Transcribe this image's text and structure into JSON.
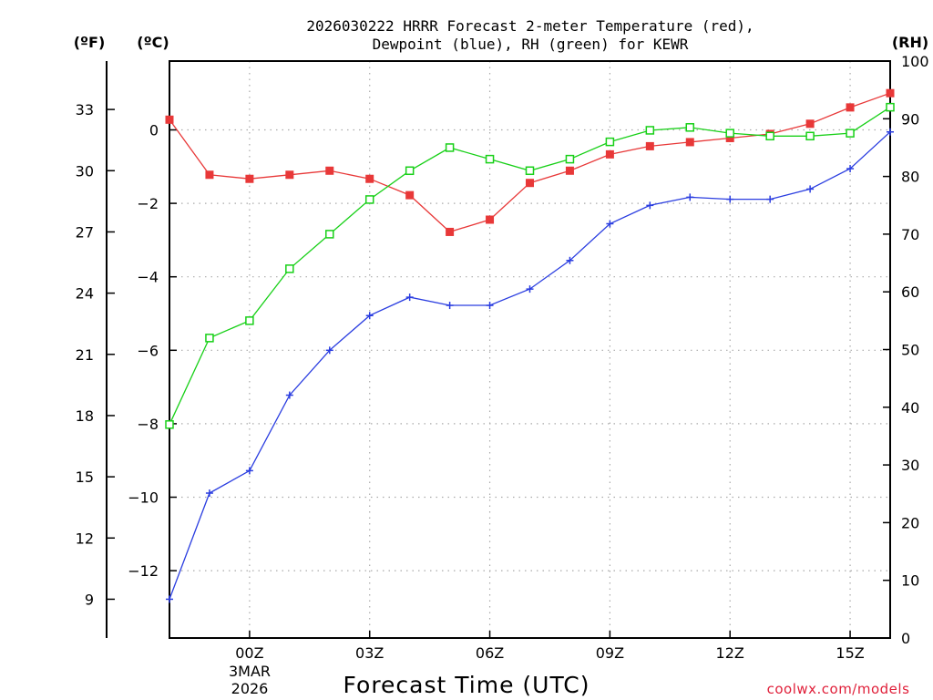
{
  "chart_data": {
    "type": "line",
    "title": [
      "2026030222 HRRR Forecast 2-meter Temperature (red),",
      "Dewpoint (blue), RH (green) for KEWR"
    ],
    "xlabel": "Forecast Time (UTC)",
    "credit": "coolwx.com/models",
    "unit_f": "(ºF)",
    "unit_c": "(ºC)",
    "unit_rh": "(RH)",
    "x": [
      22,
      23,
      24,
      25,
      26,
      27,
      28,
      29,
      30,
      31,
      32,
      33,
      34,
      35,
      36,
      37,
      38,
      39,
      40
    ],
    "x_ticks": [
      {
        "x": 24,
        "label": "00Z"
      },
      {
        "x": 27,
        "label": "03Z"
      },
      {
        "x": 30,
        "label": "06Z"
      },
      {
        "x": 33,
        "label": "09Z"
      },
      {
        "x": 36,
        "label": "12Z"
      },
      {
        "x": 39,
        "label": "15Z"
      }
    ],
    "date_label": [
      "3MAR",
      "2026"
    ],
    "xlim": [
      22,
      40
    ],
    "y_c_ticks": [
      0,
      -2,
      -4,
      -6,
      -8,
      -10,
      -12
    ],
    "y_c_labels": [
      "0",
      "−2",
      "−4",
      "−6",
      "−8",
      "−10",
      "−12"
    ],
    "y_f_ticks": [
      33,
      30,
      27,
      24,
      21,
      18,
      15,
      12,
      9
    ],
    "y_rh_ticks": [
      0,
      10,
      20,
      30,
      40,
      50,
      60,
      70,
      80,
      90,
      100
    ],
    "ylim_rh": [
      0,
      100
    ],
    "colors": {
      "temperature": "#e83838",
      "dewpoint": "#2a3de0",
      "rh": "#18d018",
      "grid": "#aaaaaa"
    },
    "series": [
      {
        "name": "Temperature (red)",
        "unit": "F",
        "marker": "filled-square",
        "values": [
          32.5,
          29.8,
          29.6,
          29.8,
          30.0,
          29.6,
          28.8,
          27.0,
          27.6,
          29.4,
          30.0,
          30.8,
          31.2,
          31.4,
          31.6,
          31.8,
          32.3,
          33.1,
          33.8
        ]
      },
      {
        "name": "Dewpoint (blue)",
        "unit": "F",
        "marker": "plus",
        "values": [
          9.0,
          14.2,
          15.3,
          19.0,
          21.2,
          22.9,
          23.8,
          23.4,
          23.4,
          24.2,
          25.6,
          27.4,
          28.3,
          28.7,
          28.6,
          28.6,
          29.1,
          30.1,
          31.9
        ]
      },
      {
        "name": "RH (green)",
        "unit": "%",
        "marker": "open-square",
        "values": [
          37,
          52,
          55,
          64,
          70,
          76,
          81,
          85,
          83,
          81,
          83,
          86,
          88,
          88.5,
          87.5,
          87,
          87,
          87.5,
          92
        ]
      }
    ]
  }
}
